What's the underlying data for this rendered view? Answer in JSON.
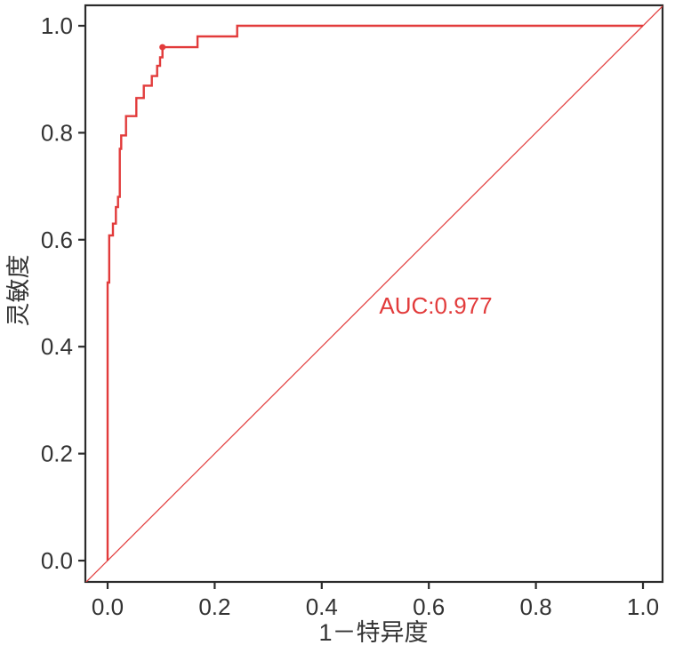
{
  "figure": {
    "background": "#ffffff",
    "accent_red": "#e23b3b",
    "axis_color": "#2b2b2b",
    "tick_text_color": "#333333"
  },
  "chart_data": {
    "type": "line",
    "subtype": "roc-curve",
    "title": "",
    "xlabel": "1－特异度",
    "ylabel": "灵敏度",
    "xlim": [
      -0.04,
      1.04
    ],
    "ylim": [
      -0.04,
      1.04
    ],
    "x_ticks": [
      0.0,
      0.2,
      0.4,
      0.6,
      0.8,
      1.0
    ],
    "y_ticks": [
      0.0,
      0.2,
      0.4,
      0.6,
      0.8,
      1.0
    ],
    "tick_format_decimals": 1,
    "grid": false,
    "legend_position": "none",
    "annotation": {
      "text": "AUC:0.977",
      "x": 0.613,
      "y": 0.472,
      "color": "#e23b3b"
    },
    "series": [
      {
        "name": "ROC curve",
        "color": "#e23b3b",
        "width": 2.4,
        "points": [
          [
            0,
            0
          ],
          [
            0,
            0.52
          ],
          [
            0.003,
            0.52
          ],
          [
            0.003,
            0.608
          ],
          [
            0.01,
            0.608
          ],
          [
            0.01,
            0.63
          ],
          [
            0.0155,
            0.63
          ],
          [
            0.0155,
            0.661
          ],
          [
            0.0194,
            0.661
          ],
          [
            0.0194,
            0.68
          ],
          [
            0.0227,
            0.68
          ],
          [
            0.0227,
            0.77
          ],
          [
            0.0254,
            0.77
          ],
          [
            0.0254,
            0.795
          ],
          [
            0.0344,
            0.795
          ],
          [
            0.0344,
            0.831
          ],
          [
            0.0537,
            0.831
          ],
          [
            0.0537,
            0.865
          ],
          [
            0.0676,
            0.865
          ],
          [
            0.0676,
            0.888
          ],
          [
            0.0825,
            0.888
          ],
          [
            0.0825,
            0.906
          ],
          [
            0.0925,
            0.906
          ],
          [
            0.0925,
            0.925
          ],
          [
            0.098,
            0.925
          ],
          [
            0.098,
            0.941
          ],
          [
            0.1025,
            0.941
          ],
          [
            0.1025,
            0.96
          ],
          [
            0.168,
            0.96
          ],
          [
            0.168,
            0.98
          ],
          [
            0.242,
            0.98
          ],
          [
            0.242,
            1
          ],
          [
            1,
            1
          ]
        ]
      },
      {
        "name": "reference diagonal",
        "color": "#e23b3b",
        "width": 1.2,
        "points": [
          [
            -0.04,
            -0.04
          ],
          [
            1.04,
            1.04
          ]
        ]
      }
    ],
    "marked_point": {
      "x": 0.1025,
      "y": 0.96,
      "radius": 3.5,
      "color": "#e23b3b"
    }
  }
}
